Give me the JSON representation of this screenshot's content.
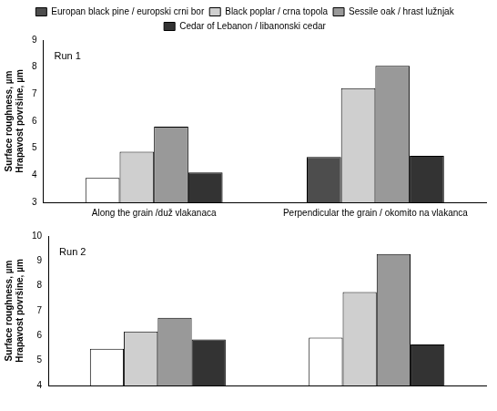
{
  "chart_data": [
    {
      "type": "bar",
      "annotation": "Run 1",
      "ylabel": [
        "Surface roughness, µm",
        "Hrapavost površine, µm"
      ],
      "categories": [
        "Along the grain /duž vlakanaca",
        "Perpendicular the grain / okomito na vlakanca"
      ],
      "series": [
        {
          "name": "Europan black pine / europski crni bor",
          "color": "#4d4d4d",
          "colors": [
            "#ffffff",
            "#4d4d4d"
          ],
          "values": [
            3.9,
            4.68
          ]
        },
        {
          "name": "Black poplar / crna topola",
          "color": "#cfcfcf",
          "values": [
            4.87,
            7.22
          ]
        },
        {
          "name": "Sessile oak / hrast lužnjak",
          "color": "#999999",
          "values": [
            5.8,
            8.05
          ]
        },
        {
          "name": "Cedar of Lebanon / libanonski cedar",
          "color": "#333333",
          "values": [
            4.1,
            4.72
          ]
        }
      ],
      "ylim": [
        3,
        9
      ],
      "yticks": [
        3,
        4,
        5,
        6,
        7,
        8,
        9
      ],
      "grid": false,
      "legend": "top"
    },
    {
      "type": "bar",
      "annotation": "Run 2",
      "ylabel": [
        "Surface roughness, µm",
        "Hrapavost površine, µm"
      ],
      "categories": [
        null,
        null
      ],
      "series": [
        {
          "name": "Europan black pine / europski crni bor",
          "color": "#ffffff",
          "values": [
            5.47,
            5.92
          ]
        },
        {
          "name": "Black poplar / crna topola",
          "color": "#cfcfcf",
          "values": [
            6.17,
            7.75
          ]
        },
        {
          "name": "Sessile oak / hrast lužnjak",
          "color": "#999999",
          "values": [
            6.72,
            9.28
          ]
        },
        {
          "name": "Cedar of Lebanon / libanonski cedar",
          "color": "#333333",
          "values": [
            5.85,
            5.65
          ]
        }
      ],
      "ylim": [
        4,
        10
      ],
      "yticks": [
        4,
        5,
        6,
        7,
        8,
        9,
        10
      ],
      "grid": false
    }
  ]
}
